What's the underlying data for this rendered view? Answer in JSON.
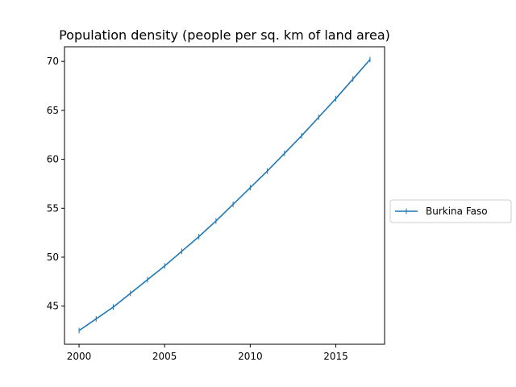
{
  "chart_data": {
    "type": "line",
    "title": "Population density (people per sq. km of land area)",
    "xlabel": "",
    "ylabel": "",
    "x": [
      2000,
      2001,
      2002,
      2003,
      2004,
      2005,
      2006,
      2007,
      2008,
      2009,
      2010,
      2011,
      2012,
      2013,
      2014,
      2015,
      2016,
      2017
    ],
    "series": [
      {
        "name": "Burkina Faso",
        "color": "#1f77b4",
        "values": [
          42.5,
          43.7,
          44.9,
          46.3,
          47.7,
          49.1,
          50.6,
          52.1,
          53.7,
          55.4,
          57.1,
          58.8,
          60.6,
          62.4,
          64.3,
          66.2,
          68.2,
          70.2
        ]
      }
    ],
    "xlim": [
      1999.15,
      2017.85
    ],
    "ylim": [
      41.1,
      71.5
    ],
    "xticks": [
      2000,
      2005,
      2010,
      2015
    ],
    "yticks": [
      45,
      50,
      55,
      60,
      65,
      70
    ],
    "grid": false,
    "legend_position": "center-right-outside"
  }
}
